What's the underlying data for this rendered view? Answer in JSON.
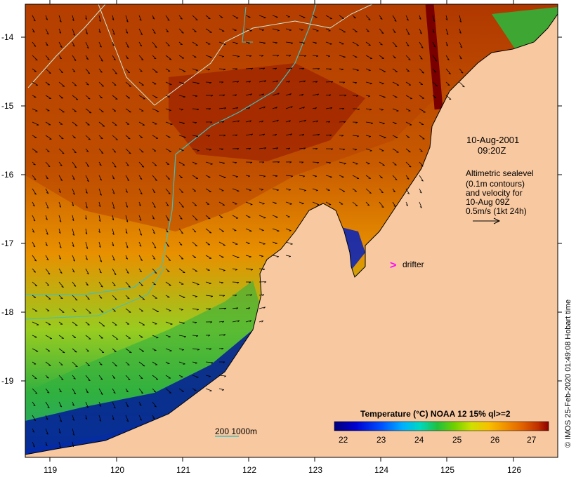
{
  "map": {
    "timestamp": {
      "date": "10-Aug-2001",
      "time": "09:20Z"
    },
    "altimetry_note": [
      "Altimetric sealevel",
      "(0.1m contours)",
      "and velocity for",
      "10-Aug 09Z",
      "0.5m/s (1kt 24h)"
    ],
    "drifter_label": "drifter",
    "drifter_marker": ">",
    "depth_contours_label": "200  1000m",
    "credit": "© IMOS 25-Feb-2020 01:49:08 Hobart time",
    "lat_ticks": [
      "-14",
      "-15",
      "-16",
      "-17",
      "-18",
      "-19"
    ],
    "lon_ticks": [
      "119",
      "120",
      "121",
      "122",
      "123",
      "124",
      "125",
      "126"
    ],
    "colorbar": {
      "title": "Temperature (°C) NOAA 12 15% ql>=2",
      "ticks": [
        "22",
        "23",
        "24",
        "25",
        "26",
        "27"
      ],
      "colors": [
        "#00007a",
        "#0000d0",
        "#0050ff",
        "#00b0ff",
        "#00d8c0",
        "#20c040",
        "#70d000",
        "#d0e000",
        "#f8c000",
        "#f09000",
        "#e06000",
        "#c03000",
        "#8c0000"
      ]
    },
    "colors": {
      "land": "#f8c8a0",
      "coastline": "#000000",
      "bathymetry_contour": "#40c0c0",
      "arrows": "#000000",
      "drifter": "#ff00ff"
    }
  }
}
